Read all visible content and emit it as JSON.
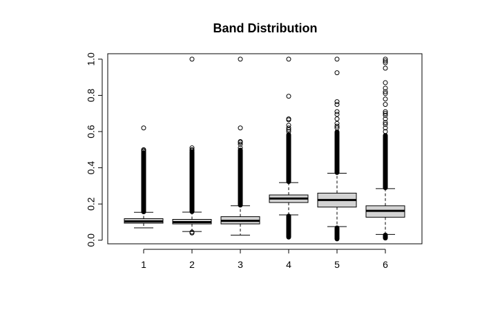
{
  "chart_data": {
    "type": "boxplot",
    "title": "Band Distribution",
    "xlabel": "",
    "ylabel": "",
    "categories": [
      "1",
      "2",
      "3",
      "4",
      "5",
      "6"
    ],
    "ylim": [
      -0.02,
      1.03
    ],
    "y_ticks": [
      "0.0",
      "0.2",
      "0.4",
      "0.6",
      "0.8",
      "1.0"
    ],
    "y_tick_values": [
      0.0,
      0.2,
      0.4,
      0.6,
      0.8,
      1.0
    ],
    "grid": false,
    "box_fill": "#d3d3d3",
    "boxes": [
      {
        "category": "1",
        "whisker_low": 0.068,
        "q1": 0.094,
        "median": 0.104,
        "q3": 0.119,
        "whisker_high": 0.154,
        "outliers_dense": [
          [
            0.155,
            0.485
          ]
        ],
        "outliers": [
          0.49,
          0.495,
          0.5,
          0.62
        ]
      },
      {
        "category": "2",
        "whisker_low": 0.048,
        "q1": 0.09,
        "median": 0.1,
        "q3": 0.115,
        "whisker_high": 0.155,
        "outliers_dense": [
          [
            0.156,
            0.49
          ]
        ],
        "outliers": [
          0.04,
          0.045,
          0.495,
          0.5,
          0.51,
          1.0
        ]
      },
      {
        "category": "3",
        "whisker_low": 0.028,
        "q1": 0.09,
        "median": 0.107,
        "q3": 0.13,
        "whisker_high": 0.19,
        "outliers_dense": [
          [
            0.192,
            0.5
          ]
        ],
        "outliers": [
          0.51,
          0.53,
          0.54,
          0.545,
          0.62,
          1.0
        ]
      },
      {
        "category": "4",
        "whisker_low": 0.14,
        "q1": 0.208,
        "median": 0.23,
        "q3": 0.25,
        "whisker_high": 0.318,
        "outliers_dense": [
          [
            0.015,
            0.135
          ],
          [
            0.322,
            0.585
          ]
        ],
        "outliers": [
          0.6,
          0.61,
          0.62,
          0.635,
          0.665,
          0.67,
          0.795,
          1.0
        ]
      },
      {
        "category": "5",
        "whisker_low": 0.075,
        "q1": 0.183,
        "median": 0.222,
        "q3": 0.26,
        "whisker_high": 0.37,
        "outliers_dense": [
          [
            0.005,
            0.07
          ],
          [
            0.372,
            0.6
          ]
        ],
        "outliers": [
          0.62,
          0.63,
          0.645,
          0.67,
          0.695,
          0.71,
          0.75,
          0.765,
          0.925,
          1.0
        ]
      },
      {
        "category": "6",
        "whisker_low": 0.032,
        "q1": 0.127,
        "median": 0.162,
        "q3": 0.19,
        "whisker_high": 0.285,
        "outliers_dense": [
          [
            0.01,
            0.03
          ],
          [
            0.288,
            0.58
          ]
        ],
        "outliers": [
          0.6,
          0.62,
          0.64,
          0.65,
          0.67,
          0.69,
          0.7,
          0.71,
          0.75,
          0.78,
          0.81,
          0.82,
          0.84,
          0.87,
          0.95,
          0.98,
          0.99,
          1.0
        ]
      }
    ]
  }
}
